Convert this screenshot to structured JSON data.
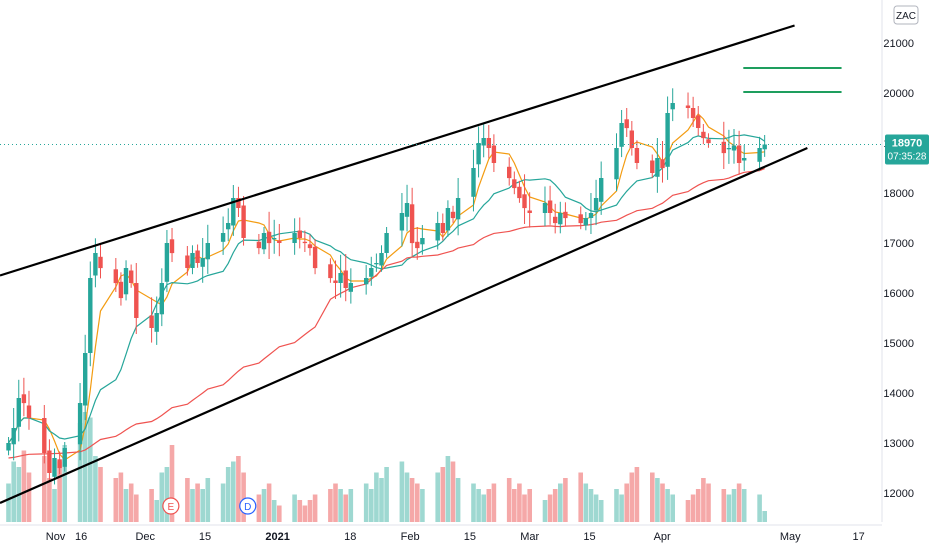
{
  "chart_data": {
    "type": "candlestick",
    "symbol": "ZAC",
    "last_price": 18970,
    "last_price_label": "18970",
    "countdown": "07:35:28",
    "ylim": [
      11500,
      21500
    ],
    "y_ticks": [
      12000,
      13000,
      14000,
      15000,
      16000,
      17000,
      18000,
      19000,
      20000,
      21000
    ],
    "x_tick_labels": [
      {
        "label": "Nov",
        "day": 10
      },
      {
        "label": "16",
        "day": 16
      },
      {
        "label": "Dec",
        "day": 31
      },
      {
        "label": "15",
        "day": 45
      },
      {
        "label": "2021",
        "day": 62
      },
      {
        "label": "18",
        "day": 79
      },
      {
        "label": "Feb",
        "day": 93
      },
      {
        "label": "15",
        "day": 107
      },
      {
        "label": "Mar",
        "day": 121
      },
      {
        "label": "15",
        "day": 135
      },
      {
        "label": "Apr",
        "day": 152
      },
      {
        "label": "May",
        "day": 182
      },
      {
        "label": "17",
        "day": 198
      }
    ],
    "x_domain_days": [
      -3,
      203
    ],
    "closes": [
      13000,
      13300,
      13900,
      13800,
      13500,
      12800,
      12400,
      12700,
      12500,
      12900,
      13800,
      14800,
      16300,
      16800,
      16500,
      16200,
      15900,
      16500,
      16200,
      15500,
      15300,
      15600,
      16200,
      17000,
      16800,
      16500,
      16800,
      16600,
      16700,
      17000,
      17200,
      17400,
      17900,
      17700,
      17100,
      16900,
      17200,
      17000,
      17100,
      17000,
      17200,
      17100,
      17000,
      16900,
      16500,
      16300,
      16200,
      16400,
      16100,
      16200,
      16300,
      16500,
      16600,
      16800,
      17200,
      17600,
      17800,
      17000,
      16900,
      17100,
      17400,
      17200,
      17700,
      17500,
      17900,
      18500,
      19000,
      19100,
      18900,
      18600,
      18300,
      18100,
      17900,
      17700,
      17600,
      17800,
      17600,
      17400,
      17600,
      17500,
      17400,
      17500,
      17600,
      17900,
      18300,
      18900,
      19400,
      19300,
      18900,
      18600,
      18400,
      18700,
      18500,
      19600,
      19800,
      19700,
      19500,
      19300,
      19100,
      19000,
      18800,
      18900,
      18950,
      18600,
      18700,
      18900,
      18970
    ],
    "volumes": [
      0.35,
      0.55,
      0.5,
      0.65,
      0.45,
      0.6,
      0.4,
      0.3,
      0.55,
      0.7,
      0.9,
      1.0,
      0.95,
      0.6,
      0.5,
      0.4,
      0.45,
      0.3,
      0.35,
      0.25,
      0.3,
      0.2,
      0.45,
      0.5,
      0.7,
      0.4,
      0.3,
      0.35,
      0.3,
      0.4,
      0.35,
      0.5,
      0.55,
      0.6,
      0.45,
      0.25,
      0.3,
      0.35,
      0.2,
      0.15,
      0.25,
      0.2,
      0.15,
      0.2,
      0.25,
      0.3,
      0.35,
      0.3,
      0.25,
      0.3,
      0.35,
      0.3,
      0.45,
      0.4,
      0.5,
      0.55,
      0.45,
      0.4,
      0.35,
      0.3,
      0.45,
      0.5,
      0.6,
      0.55,
      0.4,
      0.35,
      0.3,
      0.25,
      0.3,
      0.35,
      0.4,
      0.3,
      0.35,
      0.25,
      0.3,
      0.2,
      0.25,
      0.3,
      0.35,
      0.4,
      0.45,
      0.35,
      0.3,
      0.25,
      0.2,
      0.3,
      0.25,
      0.35,
      0.45,
      0.5,
      0.45,
      0.4,
      0.35,
      0.3,
      0.25,
      0.2,
      0.25,
      0.3,
      0.4,
      0.35,
      0.3,
      0.25,
      0.3,
      0.35,
      0.3,
      0.25,
      0.1
    ],
    "ma_series": [
      {
        "window": 5,
        "color": "#f39c12"
      },
      {
        "window": 12,
        "color": "#26a69a"
      },
      {
        "window": 45,
        "color": "#ef5350"
      }
    ],
    "channel_lines": [
      {
        "start": {
          "day": -3,
          "value": 16350
        },
        "end": {
          "day": 183,
          "value": 21350
        }
      },
      {
        "start": {
          "day": -3,
          "value": 11800
        },
        "end": {
          "day": 186,
          "value": 18900
        }
      }
    ],
    "target_lines": [
      {
        "start_day": 171,
        "end_day": 194,
        "value": 20500
      },
      {
        "start_day": 171,
        "end_day": 194,
        "value": 20020
      }
    ],
    "event_markers": [
      {
        "label": "E",
        "day": 37
      },
      {
        "label": "D",
        "day": 55
      }
    ],
    "colors": {
      "up": "#26a69a",
      "down": "#ef5350",
      "vol_up": "#9ed8d1",
      "vol_down": "#f5a8a8",
      "channel": "#000000",
      "target": "#1e9e5e",
      "price_badge": "#26a69a"
    }
  }
}
